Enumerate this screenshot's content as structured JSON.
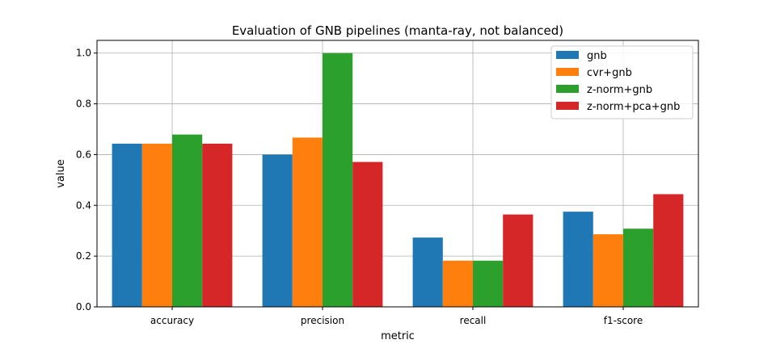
{
  "chart_data": {
    "type": "bar",
    "title": "Evaluation of GNB pipelines (manta-ray, not balanced)",
    "xlabel": "metric",
    "ylabel": "value",
    "categories": [
      "accuracy",
      "precision",
      "recall",
      "f1-score"
    ],
    "ylim": [
      0,
      1.05
    ],
    "yticks": [
      "0.0",
      "0.2",
      "0.4",
      "0.6",
      "0.8",
      "1.0"
    ],
    "grid": true,
    "legend_position": "top-right",
    "series": [
      {
        "name": "gnb",
        "color": "#1f77b4",
        "values": [
          0.643,
          0.6,
          0.273,
          0.375
        ]
      },
      {
        "name": "cvr+gnb",
        "color": "#ff7f0e",
        "values": [
          0.643,
          0.667,
          0.182,
          0.286
        ]
      },
      {
        "name": "z-norm+gnb",
        "color": "#2ca02c",
        "values": [
          0.679,
          1.0,
          0.182,
          0.308
        ]
      },
      {
        "name": "z-norm+pca+gnb",
        "color": "#d62728",
        "values": [
          0.643,
          0.571,
          0.364,
          0.444
        ]
      }
    ]
  }
}
